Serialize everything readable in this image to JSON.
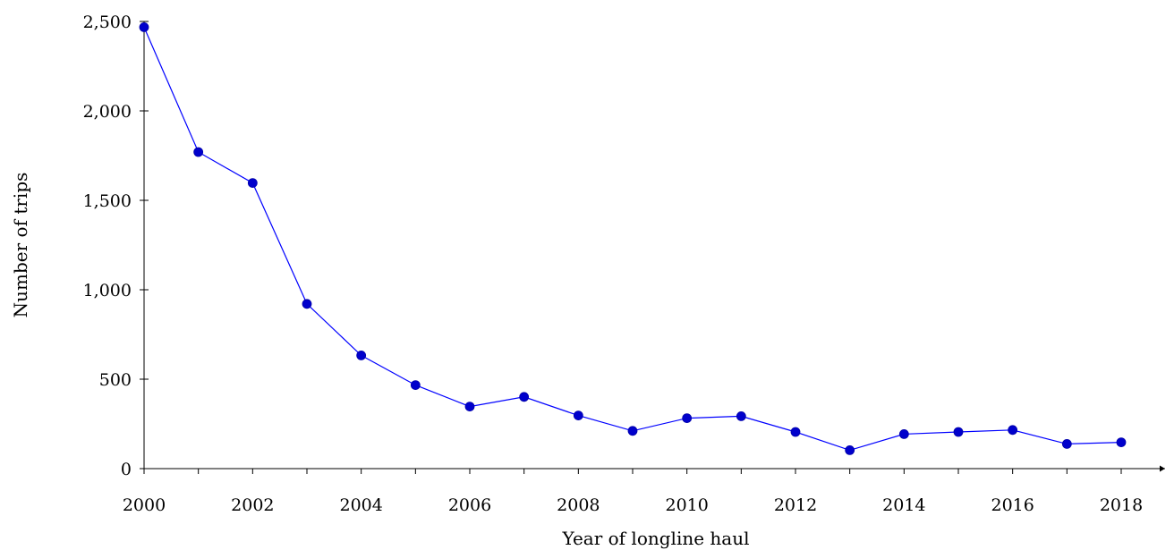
{
  "chart_data": {
    "type": "line",
    "title": "",
    "xlabel": "Year of longline haul",
    "ylabel": "Number of trips",
    "x": [
      2000,
      2001,
      2002,
      2003,
      2004,
      2005,
      2006,
      2007,
      2008,
      2009,
      2010,
      2011,
      2012,
      2013,
      2014,
      2015,
      2016,
      2017,
      2018
    ],
    "series": [
      {
        "values": [
          2468,
          1770,
          1597,
          921,
          633,
          467,
          347,
          401,
          297,
          211,
          282,
          293,
          205,
          103,
          193,
          205,
          216,
          138,
          147
        ],
        "color": "#0000ff"
      }
    ],
    "xlim": [
      2000,
      2018
    ],
    "ylim": [
      0,
      2500
    ],
    "xticks": [
      2000,
      2002,
      2004,
      2006,
      2008,
      2010,
      2012,
      2014,
      2016,
      2018
    ],
    "yticks": [
      0,
      500,
      1000,
      1500,
      2000,
      2500
    ],
    "ytick_labels": [
      "0",
      "500",
      "1,000",
      "1,500",
      "2,000",
      "2,500"
    ],
    "grid": false,
    "legend": "none"
  }
}
